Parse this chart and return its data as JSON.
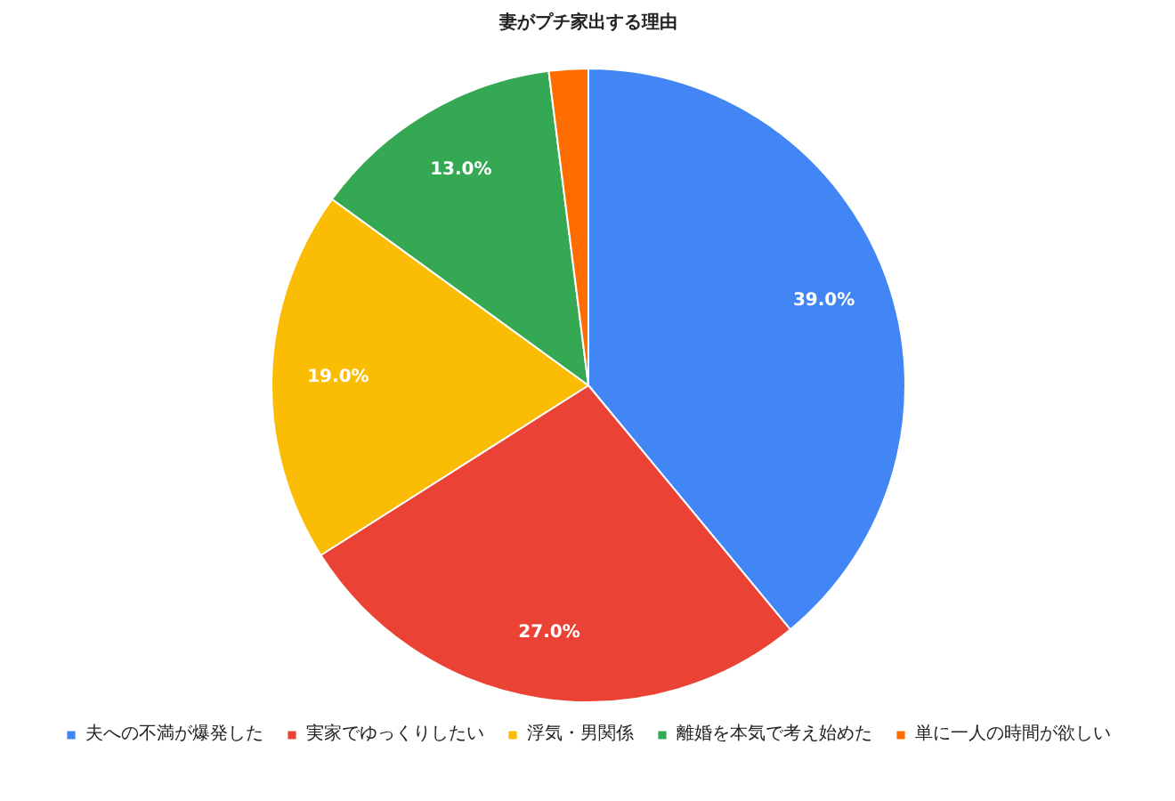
{
  "chart_data": {
    "type": "pie",
    "title": "妻がプチ家出する理由",
    "categories": [
      "夫への不満が爆発した",
      "実家でゆっくりしたい",
      "浮気・男関係",
      "離婚を本気で考え始めた",
      "単に一人の時間が欲しい"
    ],
    "values": [
      39,
      27,
      19,
      13,
      2
    ],
    "colors": [
      "#4285f4",
      "#ea4335",
      "#fbbc04",
      "#34a853",
      "#ff6d01"
    ],
    "value_labels": [
      "39.0%",
      "27.0%",
      "19.0%",
      "13.0%",
      null
    ],
    "legend": "bottom"
  }
}
